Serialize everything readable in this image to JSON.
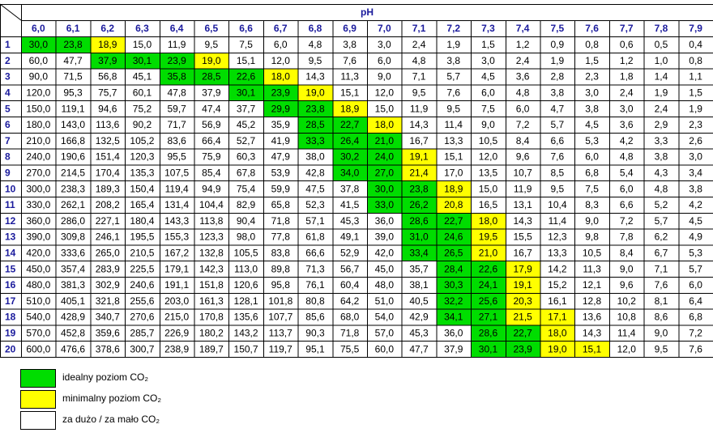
{
  "table": {
    "header": "pH",
    "columns": [
      "6,0",
      "6,1",
      "6,2",
      "6,3",
      "6,4",
      "6,5",
      "6,6",
      "6,7",
      "6,8",
      "6,9",
      "7,0",
      "7,1",
      "7,2",
      "7,3",
      "7,4",
      "7,5",
      "7,6",
      "7,7",
      "7,8",
      "7,9"
    ],
    "rows": [
      {
        "label": "1",
        "cells": [
          "30,0",
          "23,8",
          "18,9",
          "15,0",
          "11,9",
          "9,5",
          "7,5",
          "6,0",
          "4,8",
          "3,8",
          "3,0",
          "2,4",
          "1,9",
          "1,5",
          "1,2",
          "0,9",
          "0,8",
          "0,6",
          "0,5",
          "0,4"
        ],
        "colors": [
          "#0d0",
          "#0d0",
          "#ff0",
          "#fff",
          "#fff",
          "#fff",
          "#fff",
          "#fff",
          "#fff",
          "#fff",
          "#fff",
          "#fff",
          "#fff",
          "#fff",
          "#fff",
          "#fff",
          "#fff",
          "#fff",
          "#fff",
          "#fff"
        ]
      },
      {
        "label": "2",
        "cells": [
          "60,0",
          "47,7",
          "37,9",
          "30,1",
          "23,9",
          "19,0",
          "15,1",
          "12,0",
          "9,5",
          "7,6",
          "6,0",
          "4,8",
          "3,8",
          "3,0",
          "2,4",
          "1,9",
          "1,5",
          "1,2",
          "1,0",
          "0,8"
        ],
        "colors": [
          "#fff",
          "#fff",
          "#0d0",
          "#0d0",
          "#0d0",
          "#ff0",
          "#fff",
          "#fff",
          "#fff",
          "#fff",
          "#fff",
          "#fff",
          "#fff",
          "#fff",
          "#fff",
          "#fff",
          "#fff",
          "#fff",
          "#fff",
          "#fff"
        ]
      },
      {
        "label": "3",
        "cells": [
          "90,0",
          "71,5",
          "56,8",
          "45,1",
          "35,8",
          "28,5",
          "22,6",
          "18,0",
          "14,3",
          "11,3",
          "9,0",
          "7,1",
          "5,7",
          "4,5",
          "3,6",
          "2,8",
          "2,3",
          "1,8",
          "1,4",
          "1,1"
        ],
        "colors": [
          "#fff",
          "#fff",
          "#fff",
          "#fff",
          "#0d0",
          "#0d0",
          "#0d0",
          "#ff0",
          "#fff",
          "#fff",
          "#fff",
          "#fff",
          "#fff",
          "#fff",
          "#fff",
          "#fff",
          "#fff",
          "#fff",
          "#fff",
          "#fff"
        ]
      },
      {
        "label": "4",
        "cells": [
          "120,0",
          "95,3",
          "75,7",
          "60,1",
          "47,8",
          "37,9",
          "30,1",
          "23,9",
          "19,0",
          "15,1",
          "12,0",
          "9,5",
          "7,6",
          "6,0",
          "4,8",
          "3,8",
          "3,0",
          "2,4",
          "1,9",
          "1,5"
        ],
        "colors": [
          "#fff",
          "#fff",
          "#fff",
          "#fff",
          "#fff",
          "#fff",
          "#0d0",
          "#0d0",
          "#ff0",
          "#fff",
          "#fff",
          "#fff",
          "#fff",
          "#fff",
          "#fff",
          "#fff",
          "#fff",
          "#fff",
          "#fff",
          "#fff"
        ]
      },
      {
        "label": "5",
        "cells": [
          "150,0",
          "119,1",
          "94,6",
          "75,2",
          "59,7",
          "47,4",
          "37,7",
          "29,9",
          "23,8",
          "18,9",
          "15,0",
          "11,9",
          "9,5",
          "7,5",
          "6,0",
          "4,7",
          "3,8",
          "3,0",
          "2,4",
          "1,9"
        ],
        "colors": [
          "#fff",
          "#fff",
          "#fff",
          "#fff",
          "#fff",
          "#fff",
          "#fff",
          "#0d0",
          "#0d0",
          "#ff0",
          "#fff",
          "#fff",
          "#fff",
          "#fff",
          "#fff",
          "#fff",
          "#fff",
          "#fff",
          "#fff",
          "#fff"
        ]
      },
      {
        "label": "6",
        "cells": [
          "180,0",
          "143,0",
          "113,6",
          "90,2",
          "71,7",
          "56,9",
          "45,2",
          "35,9",
          "28,5",
          "22,7",
          "18,0",
          "14,3",
          "11,4",
          "9,0",
          "7,2",
          "5,7",
          "4,5",
          "3,6",
          "2,9",
          "2,3"
        ],
        "colors": [
          "#fff",
          "#fff",
          "#fff",
          "#fff",
          "#fff",
          "#fff",
          "#fff",
          "#fff",
          "#0d0",
          "#0d0",
          "#ff0",
          "#fff",
          "#fff",
          "#fff",
          "#fff",
          "#fff",
          "#fff",
          "#fff",
          "#fff",
          "#fff"
        ]
      },
      {
        "label": "7",
        "cells": [
          "210,0",
          "166,8",
          "132,5",
          "105,2",
          "83,6",
          "66,4",
          "52,7",
          "41,9",
          "33,3",
          "26,4",
          "21,0",
          "16,7",
          "13,3",
          "10,5",
          "8,4",
          "6,6",
          "5,3",
          "4,2",
          "3,3",
          "2,6"
        ],
        "colors": [
          "#fff",
          "#fff",
          "#fff",
          "#fff",
          "#fff",
          "#fff",
          "#fff",
          "#fff",
          "#0d0",
          "#0d0",
          "#0d0",
          "#fff",
          "#fff",
          "#fff",
          "#fff",
          "#fff",
          "#fff",
          "#fff",
          "#fff",
          "#fff"
        ]
      },
      {
        "label": "8",
        "cells": [
          "240,0",
          "190,6",
          "151,4",
          "120,3",
          "95,5",
          "75,9",
          "60,3",
          "47,9",
          "38,0",
          "30,2",
          "24,0",
          "19,1",
          "15,1",
          "12,0",
          "9,6",
          "7,6",
          "6,0",
          "4,8",
          "3,8",
          "3,0"
        ],
        "colors": [
          "#fff",
          "#fff",
          "#fff",
          "#fff",
          "#fff",
          "#fff",
          "#fff",
          "#fff",
          "#fff",
          "#0d0",
          "#0d0",
          "#ff0",
          "#fff",
          "#fff",
          "#fff",
          "#fff",
          "#fff",
          "#fff",
          "#fff",
          "#fff"
        ]
      },
      {
        "label": "9",
        "cells": [
          "270,0",
          "214,5",
          "170,4",
          "135,3",
          "107,5",
          "85,4",
          "67,8",
          "53,9",
          "42,8",
          "34,0",
          "27,0",
          "21,4",
          "17,0",
          "13,5",
          "10,7",
          "8,5",
          "6,8",
          "5,4",
          "4,3",
          "3,4"
        ],
        "colors": [
          "#fff",
          "#fff",
          "#fff",
          "#fff",
          "#fff",
          "#fff",
          "#fff",
          "#fff",
          "#fff",
          "#0d0",
          "#0d0",
          "#ff0",
          "#fff",
          "#fff",
          "#fff",
          "#fff",
          "#fff",
          "#fff",
          "#fff",
          "#fff"
        ]
      },
      {
        "label": "10",
        "cells": [
          "300,0",
          "238,3",
          "189,3",
          "150,4",
          "119,4",
          "94,9",
          "75,4",
          "59,9",
          "47,5",
          "37,8",
          "30,0",
          "23,8",
          "18,9",
          "15,0",
          "11,9",
          "9,5",
          "7,5",
          "6,0",
          "4,8",
          "3,8"
        ],
        "colors": [
          "#fff",
          "#fff",
          "#fff",
          "#fff",
          "#fff",
          "#fff",
          "#fff",
          "#fff",
          "#fff",
          "#fff",
          "#0d0",
          "#0d0",
          "#ff0",
          "#fff",
          "#fff",
          "#fff",
          "#fff",
          "#fff",
          "#fff",
          "#fff"
        ]
      },
      {
        "label": "11",
        "cells": [
          "330,0",
          "262,1",
          "208,2",
          "165,4",
          "131,4",
          "104,4",
          "82,9",
          "65,8",
          "52,3",
          "41,5",
          "33,0",
          "26,2",
          "20,8",
          "16,5",
          "13,1",
          "10,4",
          "8,3",
          "6,6",
          "5,2",
          "4,2"
        ],
        "colors": [
          "#fff",
          "#fff",
          "#fff",
          "#fff",
          "#fff",
          "#fff",
          "#fff",
          "#fff",
          "#fff",
          "#fff",
          "#0d0",
          "#0d0",
          "#ff0",
          "#fff",
          "#fff",
          "#fff",
          "#fff",
          "#fff",
          "#fff",
          "#fff"
        ]
      },
      {
        "label": "12",
        "cells": [
          "360,0",
          "286,0",
          "227,1",
          "180,4",
          "143,3",
          "113,8",
          "90,4",
          "71,8",
          "57,1",
          "45,3",
          "36,0",
          "28,6",
          "22,7",
          "18,0",
          "14,3",
          "11,4",
          "9,0",
          "7,2",
          "5,7",
          "4,5"
        ],
        "colors": [
          "#fff",
          "#fff",
          "#fff",
          "#fff",
          "#fff",
          "#fff",
          "#fff",
          "#fff",
          "#fff",
          "#fff",
          "#fff",
          "#0d0",
          "#0d0",
          "#ff0",
          "#fff",
          "#fff",
          "#fff",
          "#fff",
          "#fff",
          "#fff"
        ]
      },
      {
        "label": "13",
        "cells": [
          "390,0",
          "309,8",
          "246,1",
          "195,5",
          "155,3",
          "123,3",
          "98,0",
          "77,8",
          "61,8",
          "49,1",
          "39,0",
          "31,0",
          "24,6",
          "19,5",
          "15,5",
          "12,3",
          "9,8",
          "7,8",
          "6,2",
          "4,9"
        ],
        "colors": [
          "#fff",
          "#fff",
          "#fff",
          "#fff",
          "#fff",
          "#fff",
          "#fff",
          "#fff",
          "#fff",
          "#fff",
          "#fff",
          "#0d0",
          "#0d0",
          "#ff0",
          "#fff",
          "#fff",
          "#fff",
          "#fff",
          "#fff",
          "#fff"
        ]
      },
      {
        "label": "14",
        "cells": [
          "420,0",
          "333,6",
          "265,0",
          "210,5",
          "167,2",
          "132,8",
          "105,5",
          "83,8",
          "66,6",
          "52,9",
          "42,0",
          "33,4",
          "26,5",
          "21,0",
          "16,7",
          "13,3",
          "10,5",
          "8,4",
          "6,7",
          "5,3"
        ],
        "colors": [
          "#fff",
          "#fff",
          "#fff",
          "#fff",
          "#fff",
          "#fff",
          "#fff",
          "#fff",
          "#fff",
          "#fff",
          "#fff",
          "#0d0",
          "#0d0",
          "#ff0",
          "#fff",
          "#fff",
          "#fff",
          "#fff",
          "#fff",
          "#fff"
        ]
      },
      {
        "label": "15",
        "cells": [
          "450,0",
          "357,4",
          "283,9",
          "225,5",
          "179,1",
          "142,3",
          "113,0",
          "89,8",
          "71,3",
          "56,7",
          "45,0",
          "35,7",
          "28,4",
          "22,6",
          "17,9",
          "14,2",
          "11,3",
          "9,0",
          "7,1",
          "5,7"
        ],
        "colors": [
          "#fff",
          "#fff",
          "#fff",
          "#fff",
          "#fff",
          "#fff",
          "#fff",
          "#fff",
          "#fff",
          "#fff",
          "#fff",
          "#fff",
          "#0d0",
          "#0d0",
          "#ff0",
          "#fff",
          "#fff",
          "#fff",
          "#fff",
          "#fff"
        ]
      },
      {
        "label": "16",
        "cells": [
          "480,0",
          "381,3",
          "302,9",
          "240,6",
          "191,1",
          "151,8",
          "120,6",
          "95,8",
          "76,1",
          "60,4",
          "48,0",
          "38,1",
          "30,3",
          "24,1",
          "19,1",
          "15,2",
          "12,1",
          "9,6",
          "7,6",
          "6,0"
        ],
        "colors": [
          "#fff",
          "#fff",
          "#fff",
          "#fff",
          "#fff",
          "#fff",
          "#fff",
          "#fff",
          "#fff",
          "#fff",
          "#fff",
          "#fff",
          "#0d0",
          "#0d0",
          "#ff0",
          "#fff",
          "#fff",
          "#fff",
          "#fff",
          "#fff"
        ]
      },
      {
        "label": "17",
        "cells": [
          "510,0",
          "405,1",
          "321,8",
          "255,6",
          "203,0",
          "161,3",
          "128,1",
          "101,8",
          "80,8",
          "64,2",
          "51,0",
          "40,5",
          "32,2",
          "25,6",
          "20,3",
          "16,1",
          "12,8",
          "10,2",
          "8,1",
          "6,4"
        ],
        "colors": [
          "#fff",
          "#fff",
          "#fff",
          "#fff",
          "#fff",
          "#fff",
          "#fff",
          "#fff",
          "#fff",
          "#fff",
          "#fff",
          "#fff",
          "#0d0",
          "#0d0",
          "#ff0",
          "#fff",
          "#fff",
          "#fff",
          "#fff",
          "#fff"
        ]
      },
      {
        "label": "18",
        "cells": [
          "540,0",
          "428,9",
          "340,7",
          "270,6",
          "215,0",
          "170,8",
          "135,6",
          "107,7",
          "85,6",
          "68,0",
          "54,0",
          "42,9",
          "34,1",
          "27,1",
          "21,5",
          "17,1",
          "13,6",
          "10,8",
          "8,6",
          "6,8"
        ],
        "colors": [
          "#fff",
          "#fff",
          "#fff",
          "#fff",
          "#fff",
          "#fff",
          "#fff",
          "#fff",
          "#fff",
          "#fff",
          "#fff",
          "#fff",
          "#0d0",
          "#0d0",
          "#ff0",
          "#ff0",
          "#fff",
          "#fff",
          "#fff",
          "#fff"
        ]
      },
      {
        "label": "19",
        "cells": [
          "570,0",
          "452,8",
          "359,6",
          "285,7",
          "226,9",
          "180,2",
          "143,2",
          "113,7",
          "90,3",
          "71,8",
          "57,0",
          "45,3",
          "36,0",
          "28,6",
          "22,7",
          "18,0",
          "14,3",
          "11,4",
          "9,0",
          "7,2"
        ],
        "colors": [
          "#fff",
          "#fff",
          "#fff",
          "#fff",
          "#fff",
          "#fff",
          "#fff",
          "#fff",
          "#fff",
          "#fff",
          "#fff",
          "#fff",
          "#fff",
          "#0d0",
          "#0d0",
          "#ff0",
          "#fff",
          "#fff",
          "#fff",
          "#fff"
        ]
      },
      {
        "label": "20",
        "cells": [
          "600,0",
          "476,6",
          "378,6",
          "300,7",
          "238,9",
          "189,7",
          "150,7",
          "119,7",
          "95,1",
          "75,5",
          "60,0",
          "47,7",
          "37,9",
          "30,1",
          "23,9",
          "19,0",
          "15,1",
          "12,0",
          "9,5",
          "7,6"
        ],
        "colors": [
          "#fff",
          "#fff",
          "#fff",
          "#fff",
          "#fff",
          "#fff",
          "#fff",
          "#fff",
          "#fff",
          "#fff",
          "#fff",
          "#fff",
          "#fff",
          "#0d0",
          "#0d0",
          "#ff0",
          "#ff0",
          "#fff",
          "#fff",
          "#fff"
        ]
      }
    ]
  },
  "legend": [
    {
      "label": "idealny poziom CO₂",
      "color": "#0d0"
    },
    {
      "label": "minimalny poziom CO₂",
      "color": "#ff0"
    },
    {
      "label": "za dużo / za mało CO₂",
      "color": "#fff"
    }
  ]
}
